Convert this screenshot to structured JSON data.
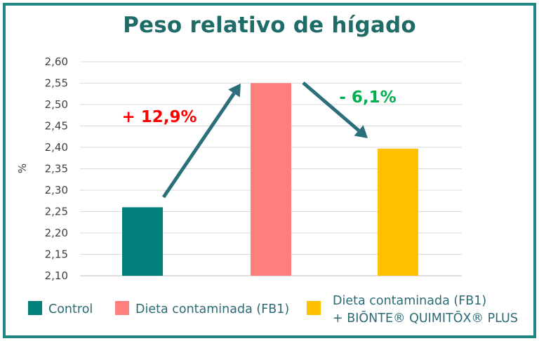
{
  "chart_data": {
    "type": "bar",
    "title": "Peso relativo de hígado",
    "ylabel": "%",
    "ylim": [
      2.1,
      2.6
    ],
    "yticks": [
      "2,10",
      "2,15",
      "2,20",
      "2,25",
      "2,30",
      "2,35",
      "2,40",
      "2,45",
      "2,50",
      "2,55",
      "2,60"
    ],
    "grid": true,
    "categories": [
      "Control",
      "Dieta contaminada (FB1)",
      "Dieta contaminada (FB1) + BIŌNTE® QUIMITŌX® PLUS"
    ],
    "values": [
      2.26,
      2.55,
      2.397
    ],
    "colors": [
      "#007f7d",
      "#ff7f7f",
      "#ffc000"
    ],
    "legend": {
      "placement": "bottom",
      "entries": [
        {
          "label_lines": [
            "Control"
          ],
          "color": "#007f7d"
        },
        {
          "label_lines": [
            "Dieta contaminada (FB1)"
          ],
          "color": "#ff7f7f"
        },
        {
          "label_lines": [
            "Dieta contaminada (FB1)",
            "+ BIŌNTE® QUIMITŌX® PLUS"
          ],
          "color": "#ffc000"
        }
      ]
    },
    "annotations": [
      {
        "text": "+ 12,9%",
        "color": "#ff0000"
      },
      {
        "text": "- 6,1%",
        "color": "#00b050"
      }
    ],
    "arrow_color": "#2a6f79"
  }
}
